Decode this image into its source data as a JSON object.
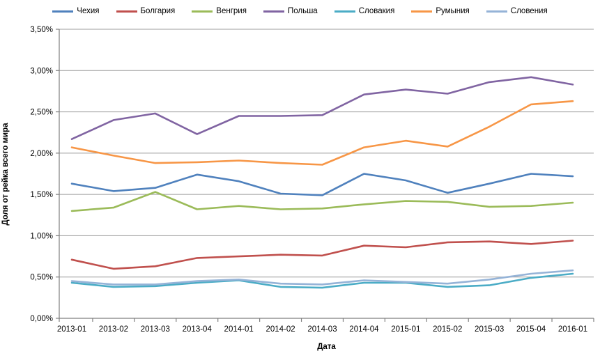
{
  "chart_data": {
    "type": "line",
    "title": "",
    "legend_position": "top",
    "grid": true,
    "x_axis": {
      "title": "Дата",
      "categories": [
        "2013-01",
        "2013-02",
        "2013-03",
        "2013-04",
        "2014-01",
        "2014-02",
        "2014-03",
        "2014-04",
        "2015-01",
        "2015-02",
        "2015-03",
        "2015-04",
        "2016-01"
      ]
    },
    "y_axis": {
      "title": "Доля от рейка всего мира",
      "min": 0,
      "max": 3.5,
      "step": 0.5,
      "unit": "%",
      "tick_labels": [
        "0,00%",
        "0,50%",
        "1,00%",
        "1,50%",
        "2,00%",
        "2,50%",
        "3,00%",
        "3,50%"
      ]
    },
    "series": [
      {
        "name": "Чехия",
        "color": "#4F81BD",
        "values": [
          1.63,
          1.54,
          1.58,
          1.74,
          1.66,
          1.51,
          1.49,
          1.75,
          1.67,
          1.52,
          1.63,
          1.75,
          1.72
        ]
      },
      {
        "name": "Болгария",
        "color": "#C0504D",
        "values": [
          0.71,
          0.6,
          0.63,
          0.73,
          0.75,
          0.77,
          0.76,
          0.88,
          0.86,
          0.92,
          0.93,
          0.9,
          0.94
        ]
      },
      {
        "name": "Венгрия",
        "color": "#9BBB59",
        "values": [
          1.3,
          1.34,
          1.53,
          1.32,
          1.36,
          1.32,
          1.33,
          1.38,
          1.42,
          1.41,
          1.35,
          1.36,
          1.4
        ]
      },
      {
        "name": "Польша",
        "color": "#8064A2",
        "values": [
          2.17,
          2.4,
          2.48,
          2.23,
          2.45,
          2.45,
          2.46,
          2.71,
          2.77,
          2.72,
          2.86,
          2.92,
          2.83
        ]
      },
      {
        "name": "Словакия",
        "color": "#4BACC6",
        "values": [
          0.43,
          0.38,
          0.39,
          0.43,
          0.46,
          0.38,
          0.37,
          0.43,
          0.43,
          0.38,
          0.4,
          0.49,
          0.54
        ]
      },
      {
        "name": "Румыния",
        "color": "#F79646",
        "values": [
          2.07,
          1.97,
          1.88,
          1.89,
          1.91,
          1.88,
          1.86,
          2.07,
          2.15,
          2.08,
          2.32,
          2.59,
          2.63
        ]
      },
      {
        "name": "Словения",
        "color": "#95B3D7",
        "values": [
          0.45,
          0.41,
          0.41,
          0.45,
          0.47,
          0.42,
          0.41,
          0.46,
          0.44,
          0.42,
          0.47,
          0.54,
          0.58
        ]
      }
    ],
    "style": {
      "gridline_color": "#9C9C9C",
      "axis_color": "#7F7F7F",
      "background": "#FFFFFF"
    }
  }
}
